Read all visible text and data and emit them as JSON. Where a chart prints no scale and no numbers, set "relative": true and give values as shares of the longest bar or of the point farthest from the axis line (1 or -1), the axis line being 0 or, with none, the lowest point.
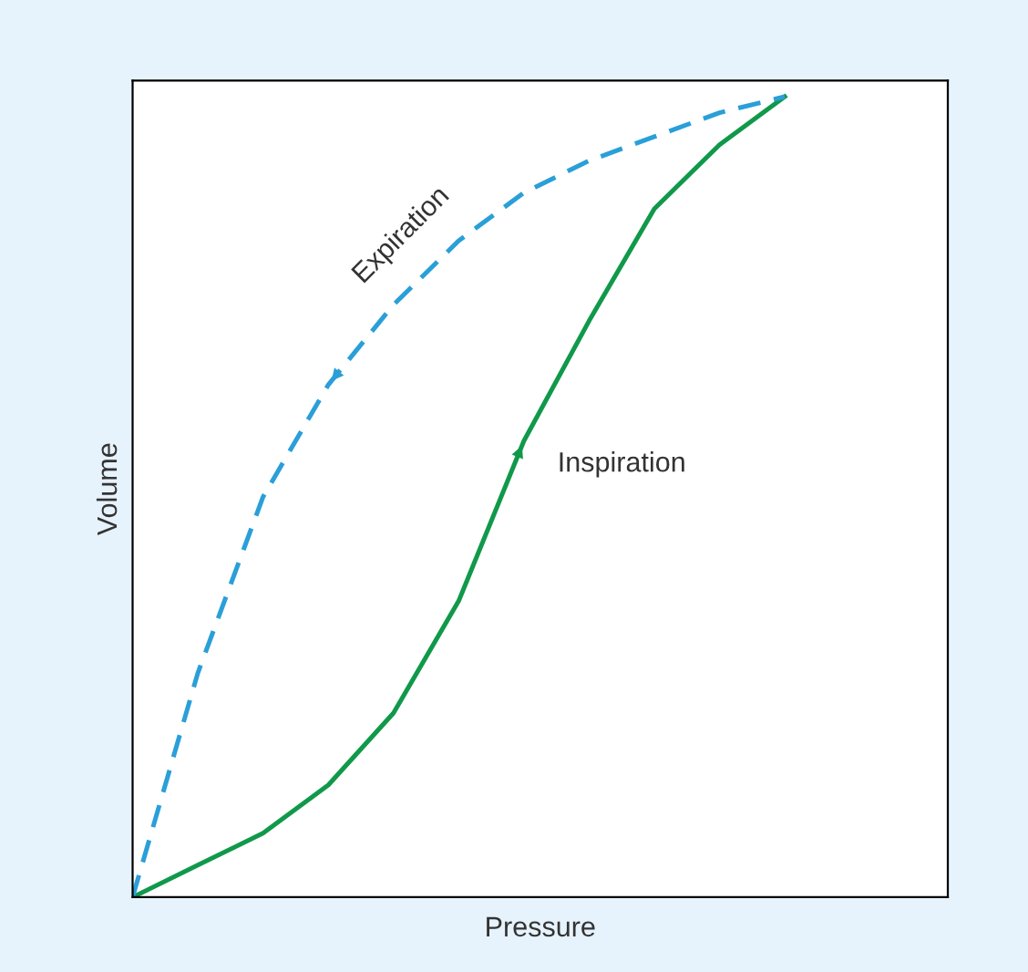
{
  "chart_data": {
    "type": "line",
    "relative": true,
    "xlabel": "Pressure",
    "ylabel": "Volume",
    "marker": "none",
    "categories": [
      null,
      null,
      null,
      null,
      null,
      null,
      null,
      null,
      null,
      null,
      null
    ],
    "series": [
      {
        "color": "#10994a",
        "line_style": "solid",
        "values": [
          0,
          0.04,
          0.08,
          0.14,
          0.23,
          0.37,
          0.57,
          0.72,
          0.86,
          0.94,
          1
        ]
      },
      {
        "color": "#2a9fd8",
        "line_style": "dashed",
        "values": [
          0,
          0.28,
          0.5,
          0.64,
          0.74,
          0.82,
          0.88,
          0.92,
          0.95,
          0.98,
          1
        ]
      }
    ],
    "annotations": [
      "Expiration",
      "Inspiration"
    ]
  }
}
